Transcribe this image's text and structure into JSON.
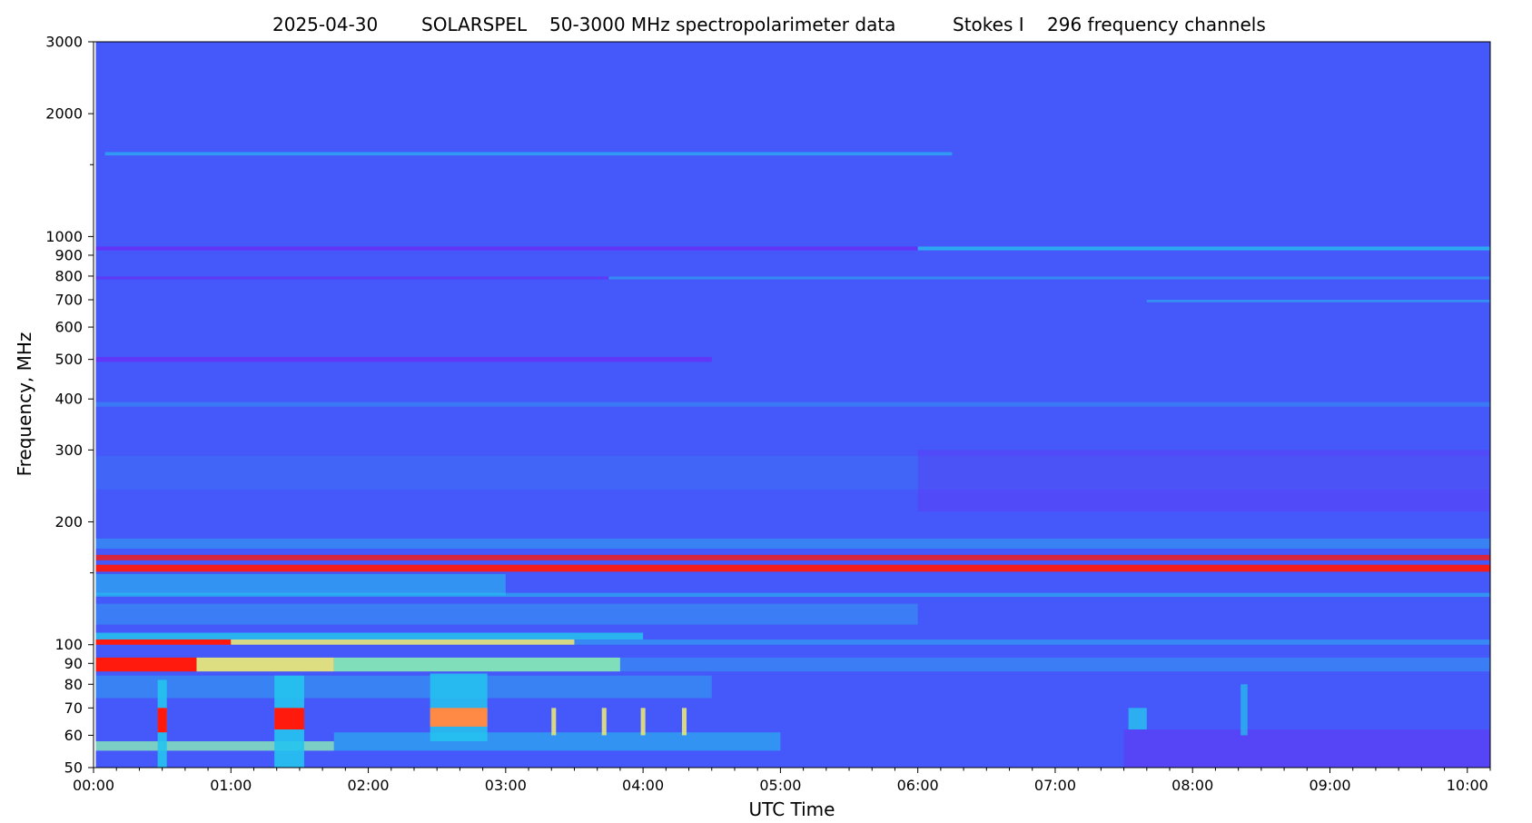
{
  "chart_data": {
    "type": "heatmap",
    "title_parts": [
      "2025-04-30",
      "SOLARSPEL",
      "50-3000 MHz spectropolarimeter data",
      "Stokes I",
      "296 frequency channels"
    ],
    "xlabel": "UTC Time",
    "ylabel": "Frequency, MHz",
    "x_scale": "time",
    "y_scale": "log",
    "xlim": [
      "00:00",
      "10:10"
    ],
    "data_start": "00:01",
    "ylim": [
      50,
      3000
    ],
    "x_ticks": [
      "00:00",
      "01:00",
      "02:00",
      "03:00",
      "04:00",
      "05:00",
      "06:00",
      "07:00",
      "08:00",
      "09:00",
      "10:00"
    ],
    "y_ticks": [
      50,
      60,
      70,
      80,
      90,
      100,
      200,
      300,
      400,
      500,
      600,
      700,
      800,
      900,
      1000,
      2000,
      3000
    ],
    "y_ticks_labeled": [
      50,
      60,
      70,
      80,
      90,
      100,
      200,
      300,
      400,
      500,
      600,
      700,
      800,
      900,
      1000,
      2000,
      3000
    ],
    "y_minor_ticks": [
      150,
      1500
    ],
    "colormap": "rainbow",
    "colors": {
      "background": "#4558f9",
      "cyan": "#25c4ee",
      "green": "#8cf6b0",
      "yellow": "#e6e57a",
      "orange": "#ff8a45",
      "red": "#ff1a0d",
      "violet": "#6a2cf5"
    },
    "bands": [
      {
        "f_low": 1580,
        "f_high": 1610,
        "t_start": "00:05",
        "t_end": "06:15",
        "level": "cyan",
        "opacity": 0.6
      },
      {
        "f_low": 925,
        "f_high": 945,
        "t_start": "00:01",
        "t_end": "06:00",
        "level": "violet",
        "opacity": 0.8
      },
      {
        "f_low": 925,
        "f_high": 945,
        "t_start": "06:00",
        "t_end": "10:10",
        "level": "cyan",
        "opacity": 0.75
      },
      {
        "f_low": 785,
        "f_high": 798,
        "t_start": "00:01",
        "t_end": "03:45",
        "level": "violet",
        "opacity": 0.7
      },
      {
        "f_low": 785,
        "f_high": 798,
        "t_start": "03:45",
        "t_end": "10:10",
        "level": "cyan",
        "opacity": 0.45
      },
      {
        "f_low": 690,
        "f_high": 700,
        "t_start": "07:40",
        "t_end": "10:10",
        "level": "cyan",
        "opacity": 0.5
      },
      {
        "f_low": 493,
        "f_high": 507,
        "t_start": "00:01",
        "t_end": "04:30",
        "level": "violet",
        "opacity": 0.75
      },
      {
        "f_low": 383,
        "f_high": 393,
        "t_start": "00:01",
        "t_end": "10:10",
        "level": "cyan",
        "opacity": 0.3
      },
      {
        "f_low": 240,
        "f_high": 290,
        "t_start": "00:01",
        "t_end": "10:10",
        "level": "cyan",
        "opacity": 0.12
      },
      {
        "f_low": 212,
        "f_high": 300,
        "t_start": "06:00",
        "t_end": "10:10",
        "level": "violet",
        "opacity": 0.3
      },
      {
        "f_low": 172,
        "f_high": 182,
        "t_start": "00:01",
        "t_end": "10:10",
        "level": "cyan",
        "opacity": 0.4
      },
      {
        "f_low": 161,
        "f_high": 166,
        "t_start": "00:01",
        "t_end": "10:10",
        "level": "red",
        "opacity": 0.8
      },
      {
        "f_low": 151,
        "f_high": 157,
        "t_start": "00:01",
        "t_end": "10:10",
        "level": "red",
        "opacity": 0.95
      },
      {
        "f_low": 132,
        "f_high": 149,
        "t_start": "00:01",
        "t_end": "03:00",
        "level": "cyan",
        "opacity": 0.55
      },
      {
        "f_low": 131,
        "f_high": 134,
        "t_start": "00:01",
        "t_end": "10:10",
        "level": "cyan",
        "opacity": 0.55
      },
      {
        "f_low": 112,
        "f_high": 126,
        "t_start": "00:01",
        "t_end": "06:00",
        "level": "cyan",
        "opacity": 0.35
      },
      {
        "f_low": 103,
        "f_high": 107,
        "t_start": "00:01",
        "t_end": "04:00",
        "level": "cyan",
        "opacity": 0.85
      },
      {
        "f_low": 100,
        "f_high": 103,
        "t_start": "00:01",
        "t_end": "01:00",
        "level": "red",
        "opacity": 1
      },
      {
        "f_low": 100,
        "f_high": 103,
        "t_start": "01:00",
        "t_end": "03:30",
        "level": "yellow",
        "opacity": 0.9
      },
      {
        "f_low": 100,
        "f_high": 103,
        "t_start": "03:30",
        "t_end": "10:10",
        "level": "cyan",
        "opacity": 0.45
      },
      {
        "f_low": 86,
        "f_high": 93,
        "t_start": "00:01",
        "t_end": "00:45",
        "level": "red",
        "opacity": 1
      },
      {
        "f_low": 86,
        "f_high": 93,
        "t_start": "00:45",
        "t_end": "01:45",
        "level": "yellow",
        "opacity": 0.95
      },
      {
        "f_low": 86,
        "f_high": 93,
        "t_start": "01:45",
        "t_end": "03:50",
        "level": "green",
        "opacity": 0.85
      },
      {
        "f_low": 86,
        "f_high": 93,
        "t_start": "03:50",
        "t_end": "10:10",
        "level": "cyan",
        "opacity": 0.35
      },
      {
        "f_low": 74,
        "f_high": 84,
        "t_start": "00:01",
        "t_end": "04:30",
        "level": "cyan",
        "opacity": 0.4
      },
      {
        "f_low": 55,
        "f_high": 58,
        "t_start": "00:01",
        "t_end": "01:45",
        "level": "green",
        "opacity": 0.75
      },
      {
        "f_low": 55,
        "f_high": 61,
        "t_start": "01:45",
        "t_end": "05:00",
        "level": "cyan",
        "opacity": 0.55
      },
      {
        "f_low": 50,
        "f_high": 62,
        "t_start": "07:30",
        "t_end": "10:10",
        "level": "violet",
        "opacity": 0.45
      }
    ],
    "bursts": [
      {
        "t_start": "00:28",
        "t_end": "00:32",
        "f_low": 50,
        "f_high": 82,
        "level": "cyan",
        "opacity": 0.9
      },
      {
        "t_start": "00:28",
        "t_end": "00:32",
        "f_low": 61,
        "f_high": 70,
        "level": "red",
        "opacity": 1
      },
      {
        "t_start": "01:19",
        "t_end": "01:32",
        "f_low": 50,
        "f_high": 84,
        "level": "cyan",
        "opacity": 0.9
      },
      {
        "t_start": "01:19",
        "t_end": "01:32",
        "f_low": 62,
        "f_high": 70,
        "level": "red",
        "opacity": 1
      },
      {
        "t_start": "02:27",
        "t_end": "02:52",
        "f_low": 58,
        "f_high": 85,
        "level": "cyan",
        "opacity": 0.85
      },
      {
        "t_start": "02:27",
        "t_end": "02:52",
        "f_low": 63,
        "f_high": 70,
        "level": "orange",
        "opacity": 1
      },
      {
        "t_start": "03:20",
        "t_end": "03:22",
        "f_low": 60,
        "f_high": 70,
        "level": "yellow",
        "opacity": 0.9
      },
      {
        "t_start": "03:42",
        "t_end": "03:44",
        "f_low": 60,
        "f_high": 70,
        "level": "yellow",
        "opacity": 0.9
      },
      {
        "t_start": "03:59",
        "t_end": "04:01",
        "f_low": 60,
        "f_high": 70,
        "level": "yellow",
        "opacity": 0.9
      },
      {
        "t_start": "04:17",
        "t_end": "04:19",
        "f_low": 60,
        "f_high": 70,
        "level": "yellow",
        "opacity": 0.9
      },
      {
        "t_start": "07:32",
        "t_end": "07:40",
        "f_low": 62,
        "f_high": 70,
        "level": "cyan",
        "opacity": 0.8
      },
      {
        "t_start": "08:21",
        "t_end": "08:24",
        "f_low": 60,
        "f_high": 80,
        "level": "cyan",
        "opacity": 0.7
      }
    ]
  }
}
